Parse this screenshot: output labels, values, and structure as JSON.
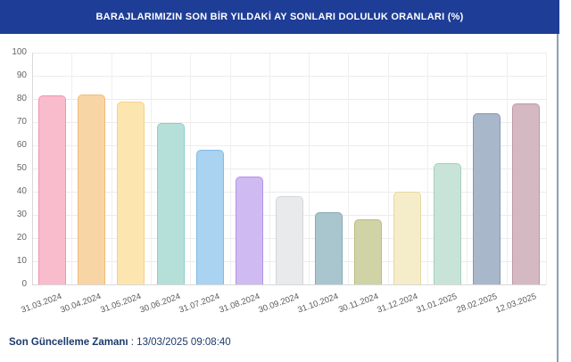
{
  "header": {
    "title": "BARAJLARIMIZIN SON BİR YILDAKİ AY SONLARI DOLULUK ORANLARI (%)",
    "background": "#1e3d96",
    "text_color": "#ffffff"
  },
  "footer": {
    "label": "Son Güncelleme Zamanı",
    "separator": " : ",
    "value": "13/03/2025 09:08:40",
    "color": "#1d3a6b"
  },
  "chart_data": {
    "type": "bar",
    "title": "BARAJLARIMIZIN SON BİR YILDAKİ AY SONLARI DOLULUK ORANLARI (%)",
    "categories": [
      "31.03.2024",
      "30.04.2024",
      "31.05.2024",
      "30.06.2024",
      "31.07.2024",
      "31.08.2024",
      "30.09.2024",
      "31.10.2024",
      "30.11.2024",
      "31.12.2024",
      "31.01.2025",
      "28.02.2025",
      "12.03.2025"
    ],
    "values": [
      81.5,
      82,
      79,
      69.5,
      58,
      46.5,
      38,
      31,
      28,
      40,
      52.5,
      74,
      78
    ],
    "bar_fill_colors": [
      "#f9bccd",
      "#f8d5a5",
      "#fce5af",
      "#b5dfd9",
      "#a9d3f0",
      "#cfbaf2",
      "#e8eaeb",
      "#a9c5cd",
      "#d0d3a6",
      "#f5edca",
      "#c8e4d8",
      "#a9b7cb",
      "#d4b9c3"
    ],
    "bar_border_colors": [
      "#f093b4",
      "#f0bc79",
      "#f3d388",
      "#8ccec6",
      "#7fbce8",
      "#b294e8",
      "#d2d7d9",
      "#86aab4",
      "#b8bd7f",
      "#e5d9a0",
      "#a4d0bd",
      "#8598b4",
      "#bf97a8"
    ],
    "xlabel": "",
    "ylabel": "",
    "ylim": [
      0,
      100
    ],
    "y_tick_labels": [
      "0",
      "10",
      "20",
      "30",
      "40",
      "50",
      "60",
      "70",
      "80",
      "90",
      "100"
    ],
    "grid": true,
    "legend": false
  }
}
